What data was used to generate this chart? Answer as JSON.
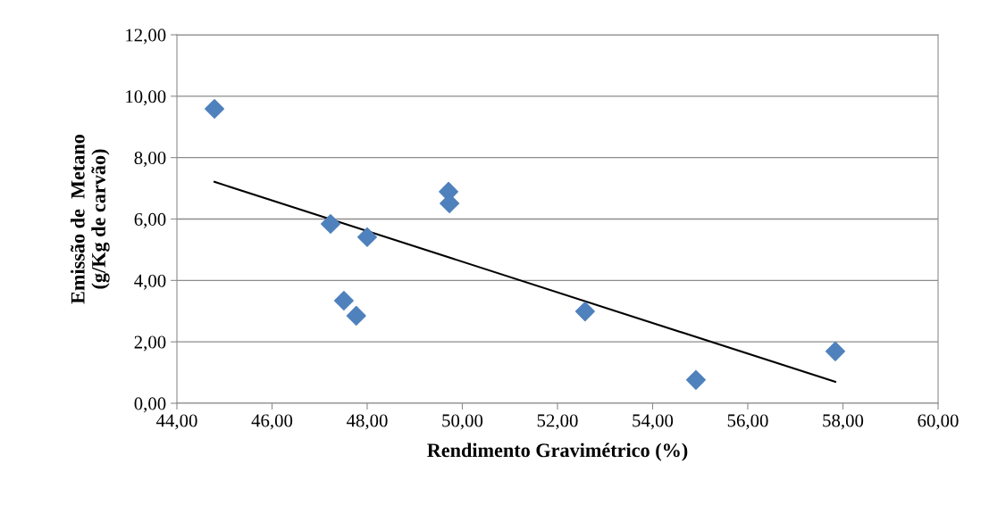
{
  "chart_data": {
    "type": "scatter",
    "xlabel": "Rendimento Gravimétrico (%)",
    "ylabel": "Emissão de  Metano\n(g/Kg de carvão)",
    "series": [
      {
        "color": "#4f81bd",
        "marker": "diamond",
        "x": [
          44.79,
          47.23,
          48.0,
          47.51,
          47.77,
          49.71,
          49.73,
          52.58,
          54.91,
          57.84
        ],
        "values": [
          9.59,
          5.84,
          5.41,
          3.34,
          2.85,
          6.89,
          6.51,
          2.99,
          0.76,
          1.69
        ]
      },
      {
        "type": "line",
        "color": "#000000",
        "marker": "none",
        "line_style": "solid",
        "x": [
          44.79,
          57.84
        ],
        "values": [
          7.21,
          0.7
        ]
      }
    ],
    "xlim": [
      44,
      60
    ],
    "xticks": [
      {
        "value": 44,
        "label": "44,00"
      },
      {
        "value": 46,
        "label": "46,00"
      },
      {
        "value": 48,
        "label": "48,00"
      },
      {
        "value": 50,
        "label": "50,00"
      },
      {
        "value": 52,
        "label": "52,00"
      },
      {
        "value": 54,
        "label": "54,00"
      },
      {
        "value": 56,
        "label": "56,00"
      },
      {
        "value": 58,
        "label": "58,00"
      },
      {
        "value": 60,
        "label": "60,00"
      }
    ],
    "ylim": [
      0,
      12
    ],
    "yticks": [
      {
        "value": 0,
        "label": "0,00"
      },
      {
        "value": 2,
        "label": "2,00"
      },
      {
        "value": 4,
        "label": "4,00"
      },
      {
        "value": 6,
        "label": "6,00"
      },
      {
        "value": 8,
        "label": "8,00"
      },
      {
        "value": 10,
        "label": "10,00"
      },
      {
        "value": 12,
        "label": "12,00"
      }
    ],
    "grid": "y",
    "legend": false
  }
}
